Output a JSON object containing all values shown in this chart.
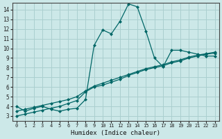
{
  "xlabel": "Humidex (Indice chaleur)",
  "bg_color": "#cce8e8",
  "grid_color": "#aacfcf",
  "line_color": "#006666",
  "xlim": [
    -0.5,
    23.5
  ],
  "ylim": [
    2.5,
    14.7
  ],
  "yticks": [
    3,
    4,
    5,
    6,
    7,
    8,
    9,
    10,
    11,
    12,
    13,
    14
  ],
  "xticks": [
    0,
    1,
    2,
    3,
    4,
    5,
    6,
    7,
    8,
    9,
    10,
    11,
    12,
    13,
    14,
    15,
    16,
    17,
    18,
    19,
    20,
    21,
    22,
    23
  ],
  "line1_x": [
    0,
    1,
    2,
    3,
    4,
    5,
    6,
    7,
    8,
    9,
    10,
    11,
    12,
    13,
    14,
    15,
    16,
    17,
    18,
    19,
    20,
    21,
    22,
    23
  ],
  "line1_y": [
    4.0,
    3.5,
    3.8,
    4.0,
    3.7,
    3.5,
    3.7,
    3.8,
    4.7,
    10.3,
    11.9,
    11.5,
    12.8,
    14.6,
    14.3,
    11.8,
    9.0,
    8.1,
    9.8,
    9.8,
    9.6,
    9.4,
    9.2,
    9.2
  ],
  "line2_x": [
    0,
    1,
    2,
    3,
    4,
    5,
    6,
    7,
    8,
    9,
    10,
    11,
    12,
    13,
    14,
    15,
    16,
    17,
    18,
    19,
    20,
    21,
    22,
    23
  ],
  "line2_y": [
    3.0,
    3.2,
    3.4,
    3.6,
    3.8,
    4.0,
    4.3,
    4.6,
    5.5,
    6.0,
    6.2,
    6.5,
    6.8,
    7.2,
    7.5,
    7.8,
    8.0,
    8.2,
    8.5,
    8.7,
    9.0,
    9.2,
    9.4,
    9.5
  ],
  "line3_x": [
    0,
    1,
    2,
    3,
    4,
    5,
    6,
    7,
    8,
    9,
    10,
    11,
    12,
    13,
    14,
    15,
    16,
    17,
    18,
    19,
    20,
    21,
    22,
    23
  ],
  "line3_y": [
    3.5,
    3.7,
    3.9,
    4.1,
    4.3,
    4.5,
    4.7,
    5.0,
    5.6,
    6.1,
    6.4,
    6.7,
    7.0,
    7.3,
    7.6,
    7.9,
    8.1,
    8.3,
    8.6,
    8.8,
    9.1,
    9.3,
    9.45,
    9.6
  ]
}
